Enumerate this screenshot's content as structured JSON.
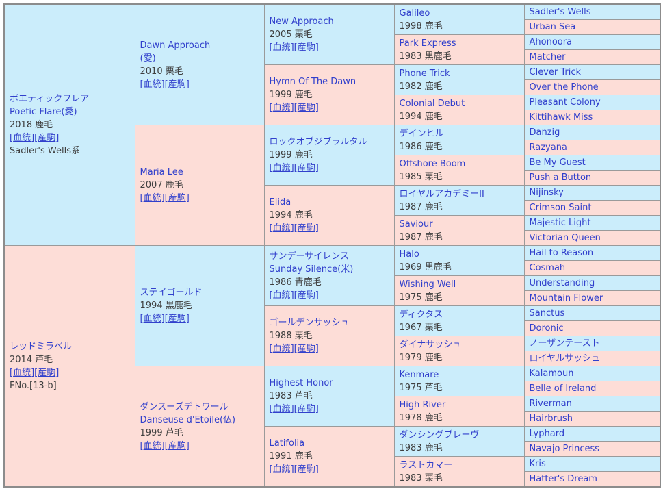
{
  "brackets": {
    "open": "[",
    "close": "]"
  },
  "colors": {
    "male_cell_bg": "#cbedfb",
    "female_cell_bg": "#fdddd7",
    "link_text": "#3140cc",
    "plain_text": "#3f3f3f",
    "grid_border": "#9a9a9a",
    "outer_border": "#8c8c8c"
  },
  "pedigree": {
    "g1": [
      {
        "sex": "s",
        "name": "ボエティックフレア",
        "name2": "Poetic Flare(愛)",
        "info": "2018 鹿毛",
        "links": [
          "血統",
          "産駒"
        ],
        "extra": "Sadler's Wells系"
      },
      {
        "sex": "d",
        "name": "レッドミラベル",
        "info": "2014 芦毛",
        "links": [
          "血統",
          "産駒"
        ],
        "extra": "FNo.[13-b]"
      }
    ],
    "g2": [
      {
        "sex": "s",
        "name": "Dawn Approach",
        "name2": "(愛)",
        "info": "2010 栗毛",
        "links": [
          "血統",
          "産駒"
        ]
      },
      {
        "sex": "d",
        "name": "Maria Lee",
        "info": "2007 鹿毛",
        "links": [
          "血統",
          "産駒"
        ]
      },
      {
        "sex": "s",
        "name": "ステイゴールド",
        "info": "1994 黒鹿毛",
        "links": [
          "血統",
          "産駒"
        ]
      },
      {
        "sex": "d",
        "name": "ダンスーズデトワール",
        "name2": "Danseuse d'Etoile(仏)",
        "info": "1999 芦毛",
        "links": [
          "血統",
          "産駒"
        ]
      }
    ],
    "g3": [
      {
        "sex": "s",
        "name": "New Approach",
        "info": "2005 栗毛",
        "links": [
          "血統",
          "産駒"
        ]
      },
      {
        "sex": "d",
        "name": "Hymn Of The Dawn",
        "info": "1999 鹿毛",
        "links": [
          "血統",
          "産駒"
        ]
      },
      {
        "sex": "s",
        "name": "ロックオブジブラルタル",
        "info": "1999 鹿毛",
        "links": [
          "血統",
          "産駒"
        ]
      },
      {
        "sex": "d",
        "name": "Elida",
        "info": "1994 鹿毛",
        "links": [
          "血統",
          "産駒"
        ]
      },
      {
        "sex": "s",
        "name": "サンデーサイレンス",
        "name2": "Sunday Silence(米)",
        "info": "1986 青鹿毛",
        "links": [
          "血統",
          "産駒"
        ]
      },
      {
        "sex": "d",
        "name": "ゴールデンサッシュ",
        "info": "1988 栗毛",
        "links": [
          "血統",
          "産駒"
        ]
      },
      {
        "sex": "s",
        "name": "Highest Honor",
        "info": "1983 芦毛",
        "links": [
          "血統",
          "産駒"
        ]
      },
      {
        "sex": "d",
        "name": "Latifolia",
        "info": "1991 鹿毛",
        "links": [
          "血統",
          "産駒"
        ]
      }
    ],
    "g4": [
      {
        "sex": "s",
        "name": "Galileo",
        "info": "1998 鹿毛"
      },
      {
        "sex": "d",
        "name": "Park Express",
        "info": "1983 黒鹿毛"
      },
      {
        "sex": "s",
        "name": "Phone Trick",
        "info": "1982 鹿毛"
      },
      {
        "sex": "d",
        "name": "Colonial Debut",
        "info": "1994 鹿毛"
      },
      {
        "sex": "s",
        "name": "デインヒル",
        "info": "1986 鹿毛"
      },
      {
        "sex": "d",
        "name": "Offshore Boom",
        "info": "1985 栗毛"
      },
      {
        "sex": "s",
        "name": "ロイヤルアカデミーII",
        "info": "1987 鹿毛"
      },
      {
        "sex": "d",
        "name": "Saviour",
        "info": "1987 鹿毛"
      },
      {
        "sex": "s",
        "name": "Halo",
        "info": "1969 黒鹿毛"
      },
      {
        "sex": "d",
        "name": "Wishing Well",
        "info": "1975 鹿毛"
      },
      {
        "sex": "s",
        "name": "ディクタス",
        "info": "1967 栗毛"
      },
      {
        "sex": "d",
        "name": "ダイナサッシュ",
        "info": "1979 鹿毛"
      },
      {
        "sex": "s",
        "name": "Kenmare",
        "info": "1975 芦毛"
      },
      {
        "sex": "d",
        "name": "High River",
        "info": "1978 鹿毛"
      },
      {
        "sex": "s",
        "name": "ダンシングブレーヴ",
        "info": "1983 鹿毛"
      },
      {
        "sex": "d",
        "name": "ラストカマー",
        "info": "1983 栗毛"
      }
    ],
    "g5": [
      {
        "sex": "s",
        "name": "Sadler's Wells"
      },
      {
        "sex": "d",
        "name": "Urban Sea"
      },
      {
        "sex": "s",
        "name": "Ahonoora"
      },
      {
        "sex": "d",
        "name": "Matcher"
      },
      {
        "sex": "s",
        "name": "Clever Trick"
      },
      {
        "sex": "d",
        "name": "Over the Phone"
      },
      {
        "sex": "s",
        "name": "Pleasant Colony"
      },
      {
        "sex": "d",
        "name": "Kittihawk Miss"
      },
      {
        "sex": "s",
        "name": "Danzig"
      },
      {
        "sex": "d",
        "name": "Razyana"
      },
      {
        "sex": "s",
        "name": "Be My Guest"
      },
      {
        "sex": "d",
        "name": "Push a Button"
      },
      {
        "sex": "s",
        "name": "Nijinsky"
      },
      {
        "sex": "d",
        "name": "Crimson Saint"
      },
      {
        "sex": "s",
        "name": "Majestic Light"
      },
      {
        "sex": "d",
        "name": "Victorian Queen"
      },
      {
        "sex": "s",
        "name": "Hail to Reason"
      },
      {
        "sex": "d",
        "name": "Cosmah"
      },
      {
        "sex": "s",
        "name": "Understanding"
      },
      {
        "sex": "d",
        "name": "Mountain Flower"
      },
      {
        "sex": "s",
        "name": "Sanctus"
      },
      {
        "sex": "d",
        "name": "Doronic"
      },
      {
        "sex": "s",
        "name": "ノーザンテースト"
      },
      {
        "sex": "d",
        "name": "ロイヤルサッシュ"
      },
      {
        "sex": "s",
        "name": "Kalamoun"
      },
      {
        "sex": "d",
        "name": "Belle of Ireland"
      },
      {
        "sex": "s",
        "name": "Riverman"
      },
      {
        "sex": "d",
        "name": "Hairbrush"
      },
      {
        "sex": "s",
        "name": "Lyphard"
      },
      {
        "sex": "d",
        "name": "Navajo Princess"
      },
      {
        "sex": "s",
        "name": "Kris"
      },
      {
        "sex": "d",
        "name": "Hatter's Dream"
      }
    ]
  }
}
